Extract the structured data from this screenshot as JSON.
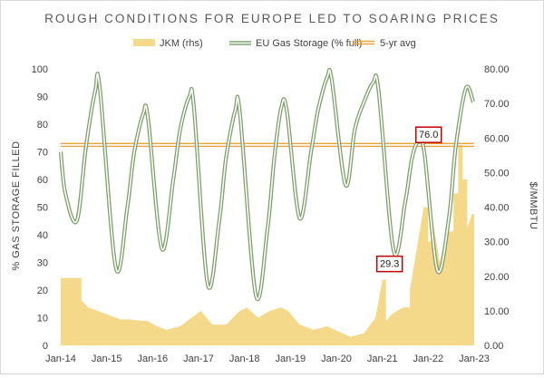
{
  "chart_data": {
    "type": "line",
    "title": "ROUGH CONDITIONS FOR EUROPE LED TO SOARING PRICES",
    "xlabel": "",
    "ylabel": "% GAS STORAGE FILLED",
    "y2label": "$/MMBTU",
    "x_ticks": [
      "Jan-14",
      "Jan-15",
      "Jan-16",
      "Jan-17",
      "Jan-18",
      "Jan-19",
      "Jan-20",
      "Jan-21",
      "Jan-22",
      "Jan-23"
    ],
    "ylim": [
      0,
      100
    ],
    "y_ticks": [
      "0",
      "10",
      "20",
      "30",
      "40",
      "50",
      "60",
      "70",
      "80",
      "90",
      "100"
    ],
    "y2lim": [
      0,
      80
    ],
    "y2_ticks": [
      "0.00",
      "10.00",
      "20.00",
      "30.00",
      "40.00",
      "50.00",
      "60.00",
      "70.00",
      "80.00"
    ],
    "legend": [
      "JKM (rhs)",
      "EU Gas Storage (% full)",
      "5-yr avg"
    ],
    "colors": {
      "jkm": "#f5d98b",
      "storage": "#7fa06b",
      "avg": "#e8a33a",
      "annotation_border": "#c00000"
    },
    "series": [
      {
        "name": "EU Gas Storage (% full)",
        "axis": "left",
        "x": [
          2014.0,
          2014.1,
          2014.35,
          2014.55,
          2014.75,
          2014.85,
          2015.2,
          2015.45,
          2015.6,
          2015.8,
          2015.9,
          2016.2,
          2016.45,
          2016.6,
          2016.8,
          2016.9,
          2017.2,
          2017.45,
          2017.6,
          2017.8,
          2017.9,
          2018.25,
          2018.5,
          2018.65,
          2018.8,
          2018.92,
          2019.2,
          2019.45,
          2019.6,
          2019.8,
          2019.9,
          2020.2,
          2020.4,
          2020.6,
          2020.8,
          2020.92,
          2021.25,
          2021.5,
          2021.65,
          2021.8,
          2021.92,
          2022.2,
          2022.45,
          2022.6,
          2022.82,
          2022.98
        ],
        "values": [
          70,
          55,
          45,
          72,
          92,
          93,
          28,
          50,
          70,
          84,
          82,
          35,
          60,
          78,
          90,
          86,
          22,
          45,
          68,
          85,
          84,
          18,
          42,
          68,
          86,
          85,
          46,
          70,
          85,
          97,
          96,
          58,
          78,
          88,
          95,
          92,
          34,
          52,
          68,
          74,
          69,
          27,
          46,
          72,
          93,
          88
        ]
      },
      {
        "name": "JKM (rhs)",
        "axis": "right",
        "type": "area",
        "x": [
          2014.0,
          2014.35,
          2014.45,
          2014.6,
          2014.9,
          2015.3,
          2015.5,
          2015.7,
          2015.9,
          2016.1,
          2016.3,
          2016.6,
          2016.9,
          2017.05,
          2017.3,
          2017.6,
          2017.9,
          2018.05,
          2018.3,
          2018.55,
          2018.8,
          2018.95,
          2019.2,
          2019.5,
          2019.8,
          2020.05,
          2020.3,
          2020.6,
          2020.85,
          2021.0,
          2021.08,
          2021.2,
          2021.45,
          2021.6,
          2021.75,
          2021.9,
          2022.0,
          2022.1,
          2022.25,
          2022.4,
          2022.55,
          2022.65,
          2022.75,
          2022.85,
          2022.95,
          2023.0
        ],
        "values": [
          19.5,
          19.5,
          13,
          11,
          9.5,
          7.5,
          7.5,
          7.2,
          7.0,
          5.5,
          4.5,
          5.5,
          8.5,
          10,
          6,
          6,
          10,
          11,
          8,
          10,
          11,
          10,
          6,
          4.5,
          5.5,
          4,
          2.5,
          3.5,
          8,
          19,
          7,
          9,
          11,
          16,
          28,
          40,
          30,
          36,
          24,
          33,
          44,
          58,
          48,
          34,
          38,
          31
        ]
      },
      {
        "name": "5-yr avg",
        "axis": "left",
        "x": [
          2014.0,
          2023.0
        ],
        "values": [
          72.5,
          72.5
        ]
      }
    ],
    "annotations": [
      {
        "text": "76.0",
        "x": 2021.85,
        "y": 76.0,
        "axis": "left"
      },
      {
        "text": "29.3",
        "x": 2021.0,
        "y": 29.3,
        "axis": "left"
      }
    ]
  }
}
